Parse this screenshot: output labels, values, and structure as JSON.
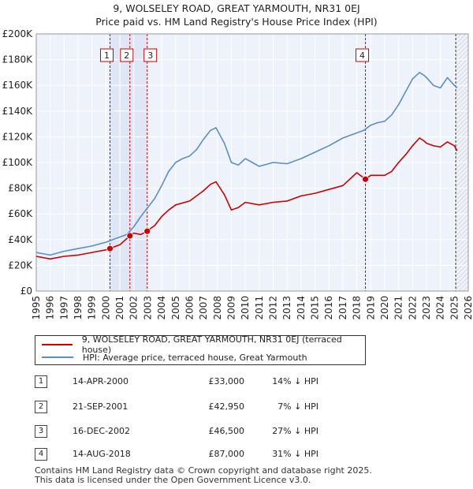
{
  "chart_data": {
    "type": "line",
    "title": "9, WOLSELEY ROAD, GREAT YARMOUTH, NR31 0EJ",
    "subtitle": "Price paid vs. HM Land Registry's House Price Index (HPI)",
    "x_range": [
      1995,
      2026
    ],
    "ylim": [
      0,
      200000
    ],
    "y_ticks": [
      0,
      20000,
      40000,
      60000,
      80000,
      100000,
      120000,
      140000,
      160000,
      180000,
      200000
    ],
    "y_tick_labels": [
      "£0",
      "£20K",
      "£40K",
      "£60K",
      "£80K",
      "£100K",
      "£120K",
      "£140K",
      "£160K",
      "£180K",
      "£200K"
    ],
    "x_tick_labels": [
      "1995",
      "1996",
      "1997",
      "1998",
      "1999",
      "2000",
      "2001",
      "2002",
      "2003",
      "2004",
      "2005",
      "2006",
      "2007",
      "2008",
      "2009",
      "2010",
      "2011",
      "2012",
      "2013",
      "2014",
      "2015",
      "2016",
      "2017",
      "2018",
      "2019",
      "2020",
      "2021",
      "2022",
      "2023",
      "2024",
      "2025",
      "2026"
    ],
    "grid": true,
    "series": [
      {
        "name": "9, WOLSELEY ROAD, GREAT YARMOUTH, NR31 0EJ (terraced house)",
        "color": "#cc0000",
        "x": [
          1995,
          1996,
          1997,
          1998,
          1999,
          2000,
          2000.29,
          2000.5,
          2001,
          2001.72,
          2002,
          2002.5,
          2002.96,
          2003,
          2003.5,
          2004,
          2004.5,
          2005,
          2006,
          2007,
          2007.5,
          2007.9,
          2008.5,
          2009,
          2009.5,
          2010,
          2011,
          2012,
          2013,
          2014,
          2015,
          2016,
          2017,
          2018,
          2018.62,
          2019,
          2020,
          2020.5,
          2021,
          2021.5,
          2022,
          2022.5,
          2022.8,
          2023,
          2023.5,
          2024,
          2024.5,
          2025,
          2025.2
        ],
        "y": [
          27000,
          25000,
          27000,
          28000,
          30000,
          32000,
          33000,
          34000,
          36000,
          42950,
          45000,
          44000,
          46500,
          47000,
          51000,
          58000,
          63000,
          67000,
          70000,
          78000,
          83000,
          85000,
          75000,
          63000,
          65000,
          69000,
          67000,
          69000,
          70000,
          74000,
          76000,
          79000,
          82000,
          92000,
          87000,
          90000,
          90000,
          93000,
          100000,
          106000,
          113000,
          119000,
          117000,
          115000,
          113000,
          112000,
          116000,
          113000,
          109000
        ]
      },
      {
        "name": "HPI: Average price, terraced house, Great Yarmouth",
        "color": "#5b8ec9",
        "x": [
          1995,
          1996,
          1997,
          1998,
          1999,
          2000,
          2000.5,
          2001,
          2001.5,
          2002,
          2002.5,
          2003,
          2003.5,
          2004,
          2004.5,
          2005,
          2005.5,
          2006,
          2006.5,
          2007,
          2007.5,
          2007.9,
          2008.5,
          2009,
          2009.5,
          2010,
          2010.5,
          2011,
          2012,
          2013,
          2014,
          2015,
          2016,
          2017,
          2018,
          2018.5,
          2019,
          2019.5,
          2020,
          2020.5,
          2021,
          2021.5,
          2022,
          2022.5,
          2022.8,
          2023,
          2023.5,
          2024,
          2024.5,
          2025,
          2025.2
        ],
        "y": [
          30000,
          28000,
          31000,
          33000,
          35000,
          38000,
          40000,
          42000,
          44000,
          50000,
          58000,
          65000,
          72000,
          82000,
          93000,
          100000,
          103000,
          105000,
          110000,
          118000,
          125000,
          127000,
          115000,
          100000,
          98000,
          103000,
          100000,
          97000,
          100000,
          99000,
          103000,
          108000,
          113000,
          119000,
          123000,
          125000,
          129000,
          131000,
          132000,
          137000,
          145000,
          155000,
          165000,
          170000,
          168000,
          166000,
          160000,
          158000,
          166000,
          160000,
          158000
        ]
      }
    ],
    "transactions": [
      {
        "label": "1",
        "x": 2000.29,
        "y": 33000
      },
      {
        "label": "2",
        "x": 2001.72,
        "y": 42950
      },
      {
        "label": "3",
        "x": 2002.96,
        "y": 46500
      },
      {
        "label": "4",
        "x": 2018.62,
        "y": 87000
      }
    ],
    "annotations": [
      "1",
      "2",
      "3",
      "4"
    ]
  },
  "legend": {
    "items": [
      {
        "label": "9, WOLSELEY ROAD, GREAT YARMOUTH, NR31 0EJ (terraced house)",
        "color": "#cc0000"
      },
      {
        "label": "HPI: Average price, terraced house, Great Yarmouth",
        "color": "#5b8ec9"
      }
    ]
  },
  "table": {
    "rows": [
      {
        "num": "1",
        "date": "14-APR-2000",
        "price": "£33,000",
        "hpi": "14% ↓ HPI"
      },
      {
        "num": "2",
        "date": "21-SEP-2001",
        "price": "£42,950",
        "hpi": "7% ↓ HPI"
      },
      {
        "num": "3",
        "date": "16-DEC-2002",
        "price": "£46,500",
        "hpi": "27% ↓ HPI"
      },
      {
        "num": "4",
        "date": "14-AUG-2018",
        "price": "£87,000",
        "hpi": "31% ↓ HPI"
      }
    ]
  },
  "footer": {
    "line1": "Contains HM Land Registry data © Crown copyright and database right 2025.",
    "line2": "This data is licensed under the Open Government Licence v3.0."
  }
}
